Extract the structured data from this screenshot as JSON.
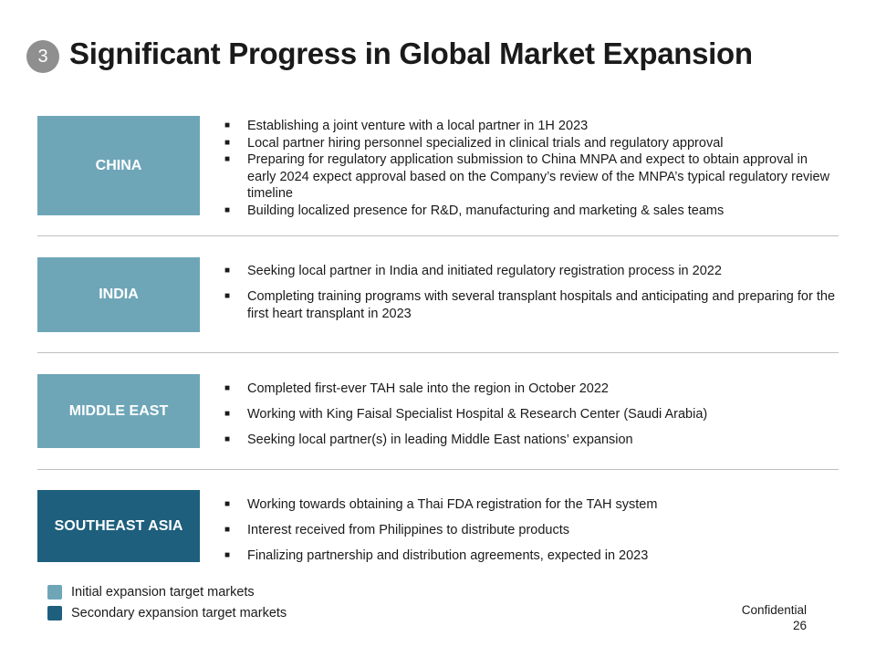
{
  "section_number": "3",
  "title": "Significant Progress in Global Market Expansion",
  "colors": {
    "initial": "#6ea6b8",
    "secondary": "#1d5f7d"
  },
  "regions": [
    {
      "label": "CHINA",
      "tier": "initial",
      "bullets": [
        "Establishing a joint venture with a local partner in 1H 2023",
        "Local partner hiring personnel specialized in clinical trials and regulatory approval",
        "Preparing for regulatory application submission to China MNPA and expect to obtain approval in early 2024 expect approval based on the Company’s review of the MNPA’s typical regulatory review timeline",
        "Building localized presence for R&D, manufacturing and marketing & sales teams"
      ]
    },
    {
      "label": "INDIA",
      "tier": "initial",
      "bullets": [
        "Seeking local partner in India and initiated regulatory registration process in 2022",
        "Completing training programs with several transplant hospitals and anticipating and preparing for the first heart transplant in 2023"
      ]
    },
    {
      "label": "MIDDLE EAST",
      "tier": "initial",
      "bullets": [
        "Completed first-ever TAH sale into the region in October 2022",
        "Working with King Faisal Specialist Hospital & Research Center (Saudi Arabia)",
        "Seeking local partner(s) in leading Middle East nations’ expansion"
      ]
    },
    {
      "label": "SOUTHEAST ASIA",
      "tier": "secondary",
      "bullets": [
        "Working towards obtaining a Thai FDA registration for the TAH system",
        "Interest received from Philippines to distribute products",
        "Finalizing partnership and distribution agreements, expected in 2023"
      ]
    }
  ],
  "legend": {
    "initial": "Initial expansion target markets",
    "secondary": "Secondary expansion target markets"
  },
  "footer": {
    "confidential": "Confidential",
    "page_number": "26"
  }
}
